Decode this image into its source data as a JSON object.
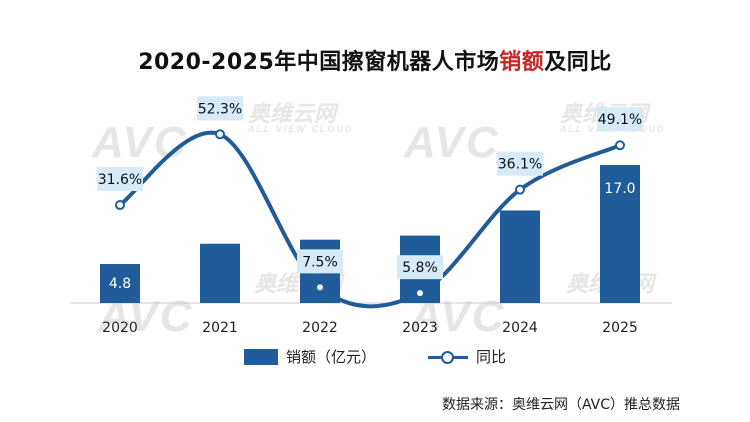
{
  "title_prefix": "2020-2025年中国擦窗机器人市场",
  "title_highlight": "销额",
  "title_suffix": "及同比",
  "watermark": {
    "brand": "AVC",
    "cn": "奥维云网",
    "en": "ALL VIEW CLOUD"
  },
  "source": "数据来源：奥维云网（AVC）推总数据",
  "colors": {
    "bar": "#1f5c99",
    "line": "#1f5c99",
    "label_box": "#d6ebf7",
    "title_highlight": "#c62828"
  },
  "legend": {
    "bar_label": "销额（亿元）",
    "line_label": "同比"
  },
  "chart_data": {
    "type": "bar+line",
    "categories": [
      "2020",
      "2021",
      "2022",
      "2023",
      "2024",
      "2025"
    ],
    "series": [
      {
        "name": "销额（亿元）",
        "type": "bar",
        "values": [
          4.8,
          7.3,
          7.8,
          8.3,
          11.4,
          17.0
        ],
        "labels": [
          "4.8",
          "",
          "",
          "",
          "",
          "17.0"
        ]
      },
      {
        "name": "同比",
        "type": "line",
        "values": [
          31.6,
          52.3,
          7.5,
          5.8,
          36.1,
          49.1
        ],
        "labels": [
          "31.6%",
          "52.3%",
          "7.5%",
          "5.8%",
          "36.1%",
          "49.1%"
        ]
      }
    ]
  }
}
